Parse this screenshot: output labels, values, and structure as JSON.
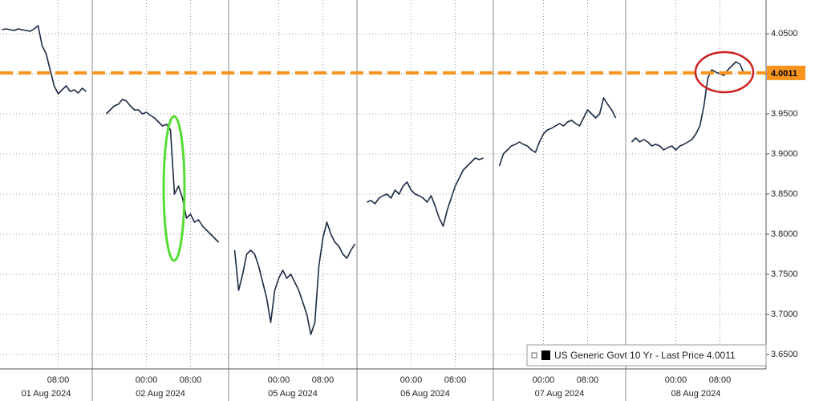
{
  "chart_data": {
    "type": "line",
    "series": [
      {
        "name": "US Generic Govt 10 Yr - Last Price",
        "color": "#1b2b44",
        "values": [
          4.055,
          4.056,
          4.055,
          4.054,
          4.056,
          4.055,
          4.054,
          4.053,
          4.056,
          4.06,
          4.035,
          4.025,
          4.005,
          3.985,
          3.975,
          3.98,
          3.985,
          3.978,
          3.98,
          3.976,
          3.982,
          3.978,
          null,
          null,
          null,
          null,
          3.95,
          3.955,
          3.96,
          3.962,
          3.968,
          3.966,
          3.96,
          3.955,
          3.955,
          3.95,
          3.952,
          3.948,
          3.945,
          3.94,
          3.935,
          3.937,
          3.93,
          3.85,
          3.86,
          3.845,
          3.82,
          3.825,
          3.815,
          3.818,
          3.81,
          3.805,
          3.8,
          3.795,
          3.79,
          null,
          null,
          null,
          3.78,
          3.73,
          3.75,
          3.775,
          3.78,
          3.775,
          3.76,
          3.74,
          3.72,
          3.69,
          3.73,
          3.745,
          3.755,
          3.745,
          3.75,
          3.74,
          3.73,
          3.715,
          3.7,
          3.675,
          3.69,
          3.76,
          3.795,
          3.815,
          3.8,
          3.79,
          3.785,
          3.775,
          3.77,
          3.78,
          3.788,
          null,
          null,
          3.84,
          3.842,
          3.838,
          3.845,
          3.848,
          3.85,
          3.845,
          3.855,
          3.85,
          3.86,
          3.865,
          3.855,
          3.85,
          3.848,
          3.845,
          3.84,
          3.848,
          3.835,
          3.82,
          3.81,
          3.83,
          3.845,
          3.86,
          3.87,
          3.88,
          3.885,
          3.89,
          3.895,
          3.893,
          3.895,
          null,
          null,
          null,
          3.885,
          3.9,
          3.905,
          3.91,
          3.912,
          3.915,
          3.912,
          3.91,
          3.905,
          3.902,
          3.915,
          3.925,
          3.93,
          3.932,
          3.935,
          3.938,
          3.935,
          3.94,
          3.942,
          3.938,
          3.935,
          3.945,
          3.955,
          3.95,
          3.945,
          3.95,
          3.97,
          3.962,
          3.955,
          3.945,
          null,
          null,
          null,
          3.915,
          3.92,
          3.915,
          3.918,
          3.915,
          3.91,
          3.912,
          3.91,
          3.905,
          3.908,
          3.91,
          3.905,
          3.91,
          3.912,
          3.915,
          3.918,
          3.925,
          3.935,
          3.96,
          3.995,
          4.005,
          4.002,
          4.0,
          3.998,
          4.005,
          4.01,
          4.015,
          4.012,
          4.0,
          null,
          null,
          null,
          null,
          null
        ]
      }
    ],
    "xlim": [
      0,
      191
    ],
    "xticks": [
      {
        "value": 14,
        "label": "08:00"
      },
      {
        "value": 36,
        "label": "00:00"
      },
      {
        "value": 47,
        "label": "08:00"
      },
      {
        "value": 69,
        "label": "00:00"
      },
      {
        "value": 80,
        "label": "08:00"
      },
      {
        "value": 102,
        "label": "00:00"
      },
      {
        "value": 113,
        "label": "08:00"
      },
      {
        "value": 135,
        "label": "00:00"
      },
      {
        "value": 146,
        "label": "08:00"
      },
      {
        "value": 168,
        "label": "00:00"
      },
      {
        "value": 179,
        "label": "08:00"
      }
    ],
    "days": [
      {
        "label": "01 Aug 2024",
        "start": 0,
        "end": 23
      },
      {
        "label": "02 Aug 2024",
        "start": 23,
        "end": 57
      },
      {
        "label": "05 Aug 2024",
        "start": 57,
        "end": 89
      },
      {
        "label": "06 Aug 2024",
        "start": 89,
        "end": 123
      },
      {
        "label": "07 Aug 2024",
        "start": 123,
        "end": 156
      },
      {
        "label": "08 Aug 2024",
        "start": 156,
        "end": 191
      }
    ],
    "ylim": [
      3.632,
      4.092
    ],
    "yticks": [
      {
        "value": 3.65,
        "label": "3.6500"
      },
      {
        "value": 3.7,
        "label": "3.7000"
      },
      {
        "value": 3.75,
        "label": "3.7500"
      },
      {
        "value": 3.8,
        "label": "3.8000"
      },
      {
        "value": 3.85,
        "label": "3.8500"
      },
      {
        "value": 3.9,
        "label": "3.9000"
      },
      {
        "value": 3.95,
        "label": "3.9500"
      },
      {
        "value": 4.0,
        "label": "4.0000"
      },
      {
        "value": 4.05,
        "label": "4.0500"
      }
    ],
    "reference_line": {
      "value": 4.0011,
      "label": "4.0011",
      "color": "#f7941d"
    },
    "grid": true
  }
}
